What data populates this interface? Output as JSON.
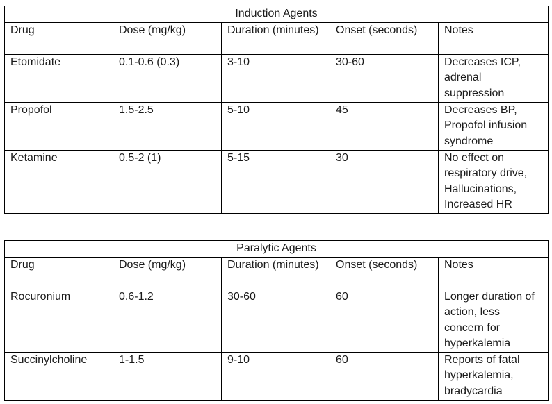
{
  "tables": [
    {
      "title": "Induction Agents",
      "headers": [
        "Drug",
        "Dose (mg/kg)",
        "Duration (minutes)",
        "Onset (seconds)",
        "Notes"
      ],
      "rows": [
        [
          "Etomidate",
          "0.1-0.6 (0.3)",
          "3-10",
          "30-60",
          "Decreases ICP, adrenal suppression"
        ],
        [
          "Propofol",
          "1.5-2.5",
          "5-10",
          "45",
          "Decreases BP, Propofol infusion syndrome"
        ],
        [
          "Ketamine",
          "0.5-2 (1)",
          "5-15",
          "30",
          "No effect on respiratory drive, Hallucinations, Increased HR"
        ]
      ]
    },
    {
      "title": "Paralytic Agents",
      "headers": [
        "Drug",
        "Dose (mg/kg)",
        "Duration (minutes)",
        "Onset (seconds)",
        "Notes"
      ],
      "rows": [
        [
          "Rocuronium",
          "0.6-1.2",
          "30-60",
          "60",
          "Longer duration of action, less concern for hyperkalemia"
        ],
        [
          "Succinylcholine",
          "1-1.5",
          "9-10",
          "60",
          "Reports of fatal hyperkalemia, bradycardia"
        ]
      ]
    }
  ]
}
